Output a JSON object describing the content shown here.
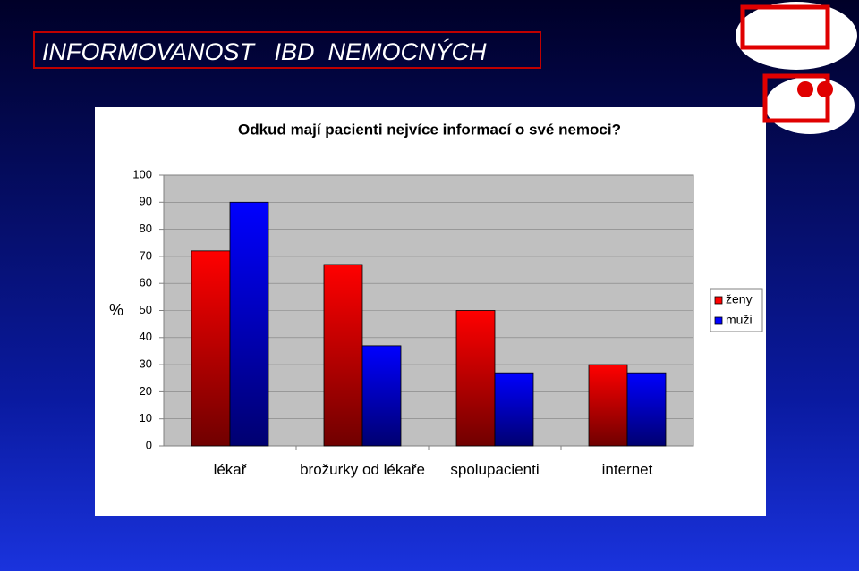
{
  "slide_title": "INFORMOVANOST   IBD  NEMOCNÝCH",
  "chart_data": {
    "type": "bar",
    "title": "Odkud mají pacienti nejvíce informací o své nemoci?",
    "y_label": "%",
    "categories": [
      "lékař",
      "brožurky od lékaře",
      "spolupacienti",
      "internet"
    ],
    "series": [
      {
        "name": "ženy",
        "color": "#ff0000",
        "values": [
          72,
          67,
          50,
          30
        ]
      },
      {
        "name": "muži",
        "color": "#0000ff",
        "values": [
          90,
          37,
          27,
          27
        ]
      }
    ],
    "ylim": [
      0,
      100
    ],
    "yticks": [
      0,
      10,
      20,
      30,
      40,
      50,
      60,
      70,
      80,
      90,
      100
    ],
    "grid": true,
    "legend": "right"
  }
}
